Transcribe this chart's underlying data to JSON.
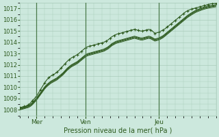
{
  "xlabel": "Pression niveau de la mer( hPa )",
  "bg_color": "#cce8dd",
  "grid_color": "#aaccbb",
  "line_color": "#2d5a1e",
  "marker_color": "#2d5a1e",
  "ylim": [
    1007.5,
    1017.5
  ],
  "xlim": [
    0,
    96
  ],
  "yticks": [
    1008,
    1009,
    1010,
    1011,
    1012,
    1013,
    1014,
    1015,
    1016,
    1017
  ],
  "xtick_positions": [
    8,
    32,
    68
  ],
  "xtick_labels": [
    "Mer",
    "Ven",
    "Jeu"
  ],
  "vline_positions": [
    8,
    32,
    68
  ],
  "series_with_markers": [
    [
      1008.2,
      1008.25,
      1008.3,
      1008.35,
      1008.45,
      1008.6,
      1008.8,
      1009.0,
      1009.2,
      1009.5,
      1009.8,
      1010.1,
      1010.4,
      1010.65,
      1010.85,
      1011.0,
      1011.1,
      1011.2,
      1011.35,
      1011.5,
      1011.7,
      1011.9,
      1012.1,
      1012.3,
      1012.45,
      1012.6,
      1012.7,
      1012.8,
      1012.9,
      1013.05,
      1013.2,
      1013.35,
      1013.5,
      1013.6,
      1013.65,
      1013.7,
      1013.75,
      1013.8,
      1013.85,
      1013.9,
      1013.95,
      1014.0,
      1014.1,
      1014.2,
      1014.35,
      1014.5,
      1014.6,
      1014.7,
      1014.75,
      1014.8,
      1014.85,
      1014.9,
      1014.95,
      1015.0,
      1015.05,
      1015.1,
      1015.15,
      1015.1,
      1015.05,
      1015.0,
      1015.0,
      1015.05,
      1015.1,
      1015.15,
      1015.1,
      1014.95,
      1014.8,
      1014.85,
      1014.9,
      1015.0,
      1015.1,
      1015.2,
      1015.35,
      1015.5,
      1015.65,
      1015.8,
      1015.95,
      1016.1,
      1016.25,
      1016.4,
      1016.55,
      1016.7,
      1016.8,
      1016.88,
      1016.95,
      1017.0,
      1017.05,
      1017.1,
      1017.15,
      1017.2,
      1017.25,
      1017.3,
      1017.35,
      1017.4,
      1017.42,
      1017.44,
      1017.46
    ]
  ],
  "series_smooth": [
    [
      1008.0,
      1008.05,
      1008.1,
      1008.15,
      1008.2,
      1008.3,
      1008.45,
      1008.65,
      1008.85,
      1009.1,
      1009.35,
      1009.6,
      1009.85,
      1010.05,
      1010.2,
      1010.35,
      1010.45,
      1010.55,
      1010.65,
      1010.8,
      1010.95,
      1011.1,
      1011.3,
      1011.5,
      1011.65,
      1011.8,
      1011.9,
      1012.0,
      1012.1,
      1012.25,
      1012.4,
      1012.55,
      1012.7,
      1012.8,
      1012.85,
      1012.9,
      1012.95,
      1013.0,
      1013.05,
      1013.1,
      1013.15,
      1013.2,
      1013.3,
      1013.4,
      1013.55,
      1013.7,
      1013.8,
      1013.9,
      1013.95,
      1014.0,
      1014.05,
      1014.1,
      1014.15,
      1014.2,
      1014.25,
      1014.3,
      1014.35,
      1014.3,
      1014.25,
      1014.2,
      1014.2,
      1014.25,
      1014.3,
      1014.35,
      1014.3,
      1014.2,
      1014.1,
      1014.15,
      1014.2,
      1014.3,
      1014.4,
      1014.55,
      1014.7,
      1014.85,
      1015.0,
      1015.15,
      1015.3,
      1015.45,
      1015.6,
      1015.75,
      1015.9,
      1016.05,
      1016.2,
      1016.32,
      1016.44,
      1016.55,
      1016.65,
      1016.73,
      1016.8,
      1016.87,
      1016.93,
      1016.98,
      1017.02,
      1017.06,
      1017.09,
      1017.12,
      1017.15
    ],
    [
      1008.05,
      1008.1,
      1008.15,
      1008.2,
      1008.27,
      1008.37,
      1008.52,
      1008.72,
      1008.92,
      1009.17,
      1009.42,
      1009.67,
      1009.92,
      1010.12,
      1010.27,
      1010.42,
      1010.52,
      1010.62,
      1010.72,
      1010.87,
      1011.02,
      1011.17,
      1011.37,
      1011.57,
      1011.72,
      1011.87,
      1011.97,
      1012.07,
      1012.17,
      1012.32,
      1012.47,
      1012.62,
      1012.77,
      1012.87,
      1012.92,
      1012.97,
      1013.02,
      1013.07,
      1013.12,
      1013.17,
      1013.22,
      1013.27,
      1013.37,
      1013.47,
      1013.62,
      1013.77,
      1013.87,
      1013.97,
      1014.02,
      1014.07,
      1014.12,
      1014.17,
      1014.22,
      1014.27,
      1014.32,
      1014.37,
      1014.42,
      1014.37,
      1014.32,
      1014.27,
      1014.27,
      1014.32,
      1014.37,
      1014.42,
      1014.37,
      1014.27,
      1014.17,
      1014.22,
      1014.27,
      1014.37,
      1014.47,
      1014.62,
      1014.77,
      1014.92,
      1015.07,
      1015.22,
      1015.37,
      1015.52,
      1015.67,
      1015.82,
      1015.97,
      1016.12,
      1016.27,
      1016.39,
      1016.51,
      1016.62,
      1016.72,
      1016.8,
      1016.87,
      1016.94,
      1017.0,
      1017.05,
      1017.09,
      1017.13,
      1017.16,
      1017.19,
      1017.22
    ],
    [
      1008.1,
      1008.15,
      1008.2,
      1008.25,
      1008.33,
      1008.43,
      1008.58,
      1008.78,
      1008.98,
      1009.23,
      1009.48,
      1009.73,
      1009.98,
      1010.18,
      1010.33,
      1010.48,
      1010.58,
      1010.68,
      1010.78,
      1010.93,
      1011.08,
      1011.23,
      1011.43,
      1011.63,
      1011.78,
      1011.93,
      1012.03,
      1012.13,
      1012.23,
      1012.38,
      1012.53,
      1012.68,
      1012.83,
      1012.93,
      1012.98,
      1013.03,
      1013.08,
      1013.13,
      1013.18,
      1013.23,
      1013.28,
      1013.33,
      1013.43,
      1013.53,
      1013.68,
      1013.83,
      1013.93,
      1014.03,
      1014.08,
      1014.13,
      1014.18,
      1014.23,
      1014.28,
      1014.33,
      1014.38,
      1014.43,
      1014.48,
      1014.43,
      1014.38,
      1014.33,
      1014.33,
      1014.38,
      1014.43,
      1014.48,
      1014.43,
      1014.33,
      1014.23,
      1014.28,
      1014.33,
      1014.43,
      1014.53,
      1014.68,
      1014.83,
      1014.98,
      1015.13,
      1015.28,
      1015.43,
      1015.58,
      1015.73,
      1015.88,
      1016.03,
      1016.18,
      1016.33,
      1016.45,
      1016.57,
      1016.68,
      1016.78,
      1016.86,
      1016.93,
      1017.0,
      1017.06,
      1017.11,
      1017.15,
      1017.19,
      1017.22,
      1017.25,
      1017.28
    ],
    [
      1008.15,
      1008.2,
      1008.25,
      1008.3,
      1008.39,
      1008.49,
      1008.64,
      1008.84,
      1009.04,
      1009.29,
      1009.54,
      1009.79,
      1010.04,
      1010.24,
      1010.39,
      1010.54,
      1010.64,
      1010.74,
      1010.84,
      1010.99,
      1011.14,
      1011.29,
      1011.49,
      1011.69,
      1011.84,
      1011.99,
      1012.09,
      1012.19,
      1012.29,
      1012.44,
      1012.59,
      1012.74,
      1012.89,
      1012.99,
      1013.04,
      1013.09,
      1013.14,
      1013.19,
      1013.24,
      1013.29,
      1013.34,
      1013.39,
      1013.49,
      1013.59,
      1013.74,
      1013.89,
      1013.99,
      1014.09,
      1014.14,
      1014.19,
      1014.24,
      1014.29,
      1014.34,
      1014.39,
      1014.44,
      1014.49,
      1014.54,
      1014.49,
      1014.44,
      1014.39,
      1014.39,
      1014.44,
      1014.49,
      1014.54,
      1014.49,
      1014.39,
      1014.29,
      1014.34,
      1014.39,
      1014.49,
      1014.59,
      1014.74,
      1014.89,
      1015.04,
      1015.19,
      1015.34,
      1015.49,
      1015.64,
      1015.79,
      1015.94,
      1016.09,
      1016.24,
      1016.39,
      1016.51,
      1016.63,
      1016.74,
      1016.84,
      1016.92,
      1016.99,
      1017.06,
      1017.12,
      1017.17,
      1017.21,
      1017.25,
      1017.28,
      1017.31,
      1017.34
    ]
  ]
}
